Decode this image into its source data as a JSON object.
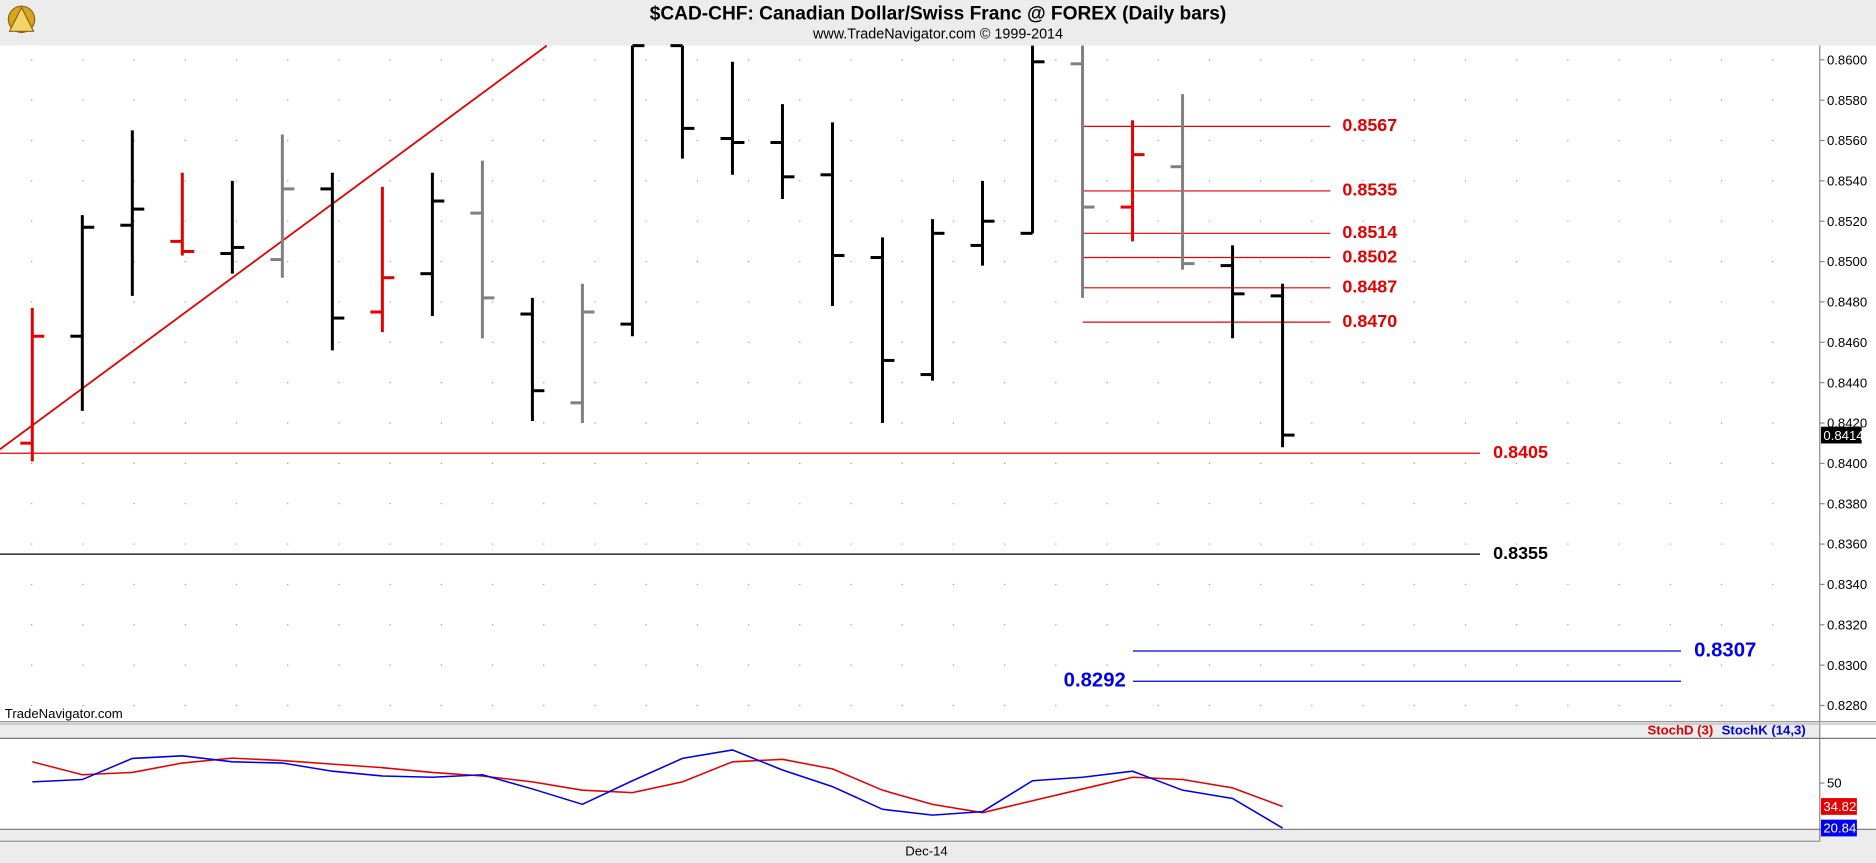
{
  "header": {
    "title": "$CAD-CHF:  Canadian Dollar/Swiss Franc @ FOREX  (Daily bars)",
    "subtitle": "www.TradeNavigator.com © 1999-2014"
  },
  "watermark": "TradeNavigator.com",
  "chart_data": [
    {
      "type": "ohlc",
      "categories": [
        null,
        null,
        null,
        null,
        null,
        null,
        null,
        null,
        null,
        null,
        null,
        null,
        null,
        null,
        null,
        null,
        null,
        null,
        "Dec-14",
        null,
        null,
        null,
        null,
        null,
        null,
        null
      ],
      "open": [
        0.841,
        0.8463,
        0.8518,
        0.851,
        0.8504,
        0.8501,
        0.8536,
        0.8475,
        0.8494,
        0.8524,
        0.8474,
        0.843,
        0.8469,
        0.8607,
        0.8561,
        0.8559,
        0.8543,
        0.8502,
        0.8444,
        0.8508,
        0.8514,
        0.8598,
        0.8527,
        0.8547,
        0.8498,
        0.8483
      ],
      "high": [
        0.8477,
        0.8523,
        0.8565,
        0.8544,
        0.854,
        0.8563,
        0.8544,
        0.8537,
        0.8544,
        0.855,
        0.8482,
        0.8489,
        0.8607,
        0.8607,
        0.8599,
        0.8578,
        0.8569,
        0.8512,
        0.8521,
        0.854,
        0.8607,
        0.8607,
        0.857,
        0.8583,
        0.8508,
        0.8489
      ],
      "low": [
        0.8401,
        0.8426,
        0.8483,
        0.8503,
        0.8494,
        0.8492,
        0.8456,
        0.8465,
        0.8473,
        0.8462,
        0.8421,
        0.842,
        0.8463,
        0.8551,
        0.8543,
        0.8531,
        0.8478,
        0.842,
        0.8441,
        0.8498,
        0.8514,
        0.8482,
        0.851,
        0.8496,
        0.8462,
        0.8408
      ],
      "close": [
        0.8463,
        0.8517,
        0.8526,
        0.8505,
        0.8507,
        0.8536,
        0.8472,
        0.8492,
        0.853,
        0.8482,
        0.8436,
        0.8475,
        0.8607,
        0.8566,
        0.8559,
        0.8542,
        0.8503,
        0.8451,
        0.8514,
        0.852,
        0.8599,
        0.8527,
        0.8553,
        0.8499,
        0.8484,
        0.8414
      ],
      "colors": [
        "#e60000",
        "#000000",
        "#000000",
        "#e60000",
        "#000000",
        "#808080",
        "#000000",
        "#e60000",
        "#000000",
        "#808080",
        "#000000",
        "#808080",
        "#000000",
        "#000000",
        "#000000",
        "#000000",
        "#000000",
        "#000000",
        "#000000",
        "#000000",
        "#000000",
        "#808080",
        "#e60000",
        "#808080",
        "#000000",
        "#000000"
      ],
      "ylim": [
        0.8272,
        0.8607
      ],
      "yticks": [
        {
          "value": 0.828,
          "label": "0.8280"
        },
        {
          "value": 0.83,
          "label": "0.8300"
        },
        {
          "value": 0.832,
          "label": "0.8320"
        },
        {
          "value": 0.834,
          "label": "0.8340"
        },
        {
          "value": 0.836,
          "label": "0.8360"
        },
        {
          "value": 0.838,
          "label": "0.8380"
        },
        {
          "value": 0.84,
          "label": "0.8400"
        },
        {
          "value": 0.842,
          "label": "0.8420"
        },
        {
          "value": 0.844,
          "label": "0.8440"
        },
        {
          "value": 0.846,
          "label": "0.8460"
        },
        {
          "value": 0.848,
          "label": "0.8480"
        },
        {
          "value": 0.85,
          "label": "0.8500"
        },
        {
          "value": 0.852,
          "label": "0.8520"
        },
        {
          "value": 0.854,
          "label": "0.8540"
        },
        {
          "value": 0.856,
          "label": "0.8560"
        },
        {
          "value": 0.858,
          "label": "0.8580"
        },
        {
          "value": 0.86,
          "label": "0.8600"
        }
      ],
      "grid": true,
      "last_label": "0.8414",
      "trendline": {
        "color": "#e60000",
        "values": [
          0.8407,
          0.8607
        ]
      },
      "levels": [
        {
          "value": 0.8567,
          "label": "0.8567",
          "color": "#e60000"
        },
        {
          "value": 0.8535,
          "label": "0.8535",
          "color": "#e60000"
        },
        {
          "value": 0.8514,
          "label": "0.8514",
          "color": "#e60000"
        },
        {
          "value": 0.8502,
          "label": "0.8502",
          "color": "#e60000"
        },
        {
          "value": 0.8487,
          "label": "0.8487",
          "color": "#e60000"
        },
        {
          "value": 0.847,
          "label": "0.8470",
          "color": "#e60000"
        },
        {
          "value": 0.8405,
          "label": "0.8405",
          "color": "#e60000"
        },
        {
          "value": 0.8355,
          "label": "0.8355",
          "color": "#000000"
        },
        {
          "value": 0.8307,
          "label": "0.8307",
          "color": "#0000ee"
        },
        {
          "value": 0.8292,
          "label": "0.8292",
          "color": "#0000ee"
        }
      ]
    },
    {
      "type": "line",
      "series": [
        {
          "name": "StochD (3)",
          "color": "#e60000",
          "values": [
            63.8,
            55.4,
            56.9,
            63,
            66.2,
            64.6,
            62.3,
            60,
            56.9,
            54.6,
            50.8,
            45.4,
            43.8,
            50.8,
            63.8,
            65.4,
            59.2,
            45.4,
            36.2,
            30.8,
            38.5,
            46.2,
            53.8,
            52.3,
            46.9,
            34.82
          ]
        },
        {
          "name": "StochK (14,3)",
          "color": "#0000ee",
          "values": [
            50.8,
            52.3,
            66,
            67.7,
            63.8,
            63,
            57.7,
            54.6,
            53.8,
            55.4,
            46.2,
            36.2,
            51.5,
            66,
            71.5,
            58.5,
            47.7,
            33,
            29.2,
            31.5,
            51.5,
            53.8,
            57.7,
            45.4,
            40,
            20.84
          ]
        }
      ],
      "ylim": [
        20,
        79
      ],
      "yticks": [
        50
      ]
    }
  ]
}
